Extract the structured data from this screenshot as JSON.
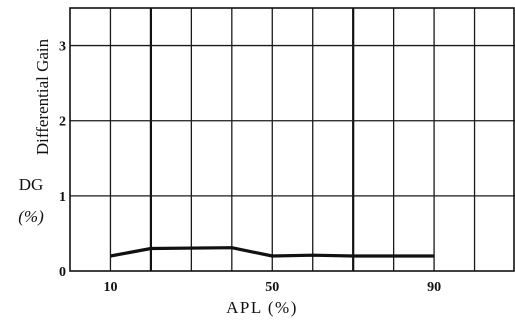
{
  "chart_data": {
    "type": "line",
    "xlabel": "APL (%)",
    "ylabel_vertical": "Differential Gain",
    "ylabel_short_line1": "DG",
    "ylabel_short_line2": "(%)",
    "xlim": [
      0,
      110
    ],
    "ylim": [
      0,
      3.5
    ],
    "x_tick_labels": [
      {
        "value": 10,
        "label": "10"
      },
      {
        "value": 50,
        "label": "50"
      },
      {
        "value": 90,
        "label": "90"
      }
    ],
    "y_tick_labels": [
      {
        "value": 0,
        "label": "0"
      },
      {
        "value": 1,
        "label": "1"
      },
      {
        "value": 2,
        "label": "2"
      },
      {
        "value": 3,
        "label": "3"
      }
    ],
    "x_gridlines": [
      10,
      20,
      30,
      40,
      50,
      60,
      70,
      80,
      90,
      100
    ],
    "x_gridlines_major": [
      20,
      70
    ],
    "y_gridlines": [
      1,
      2,
      3
    ],
    "grid": true,
    "series": [
      {
        "x": [
          10,
          20,
          40,
          50,
          60,
          70,
          90
        ],
        "y": [
          0.2,
          0.3,
          0.31,
          0.2,
          0.21,
          0.2,
          0.2
        ]
      }
    ]
  }
}
